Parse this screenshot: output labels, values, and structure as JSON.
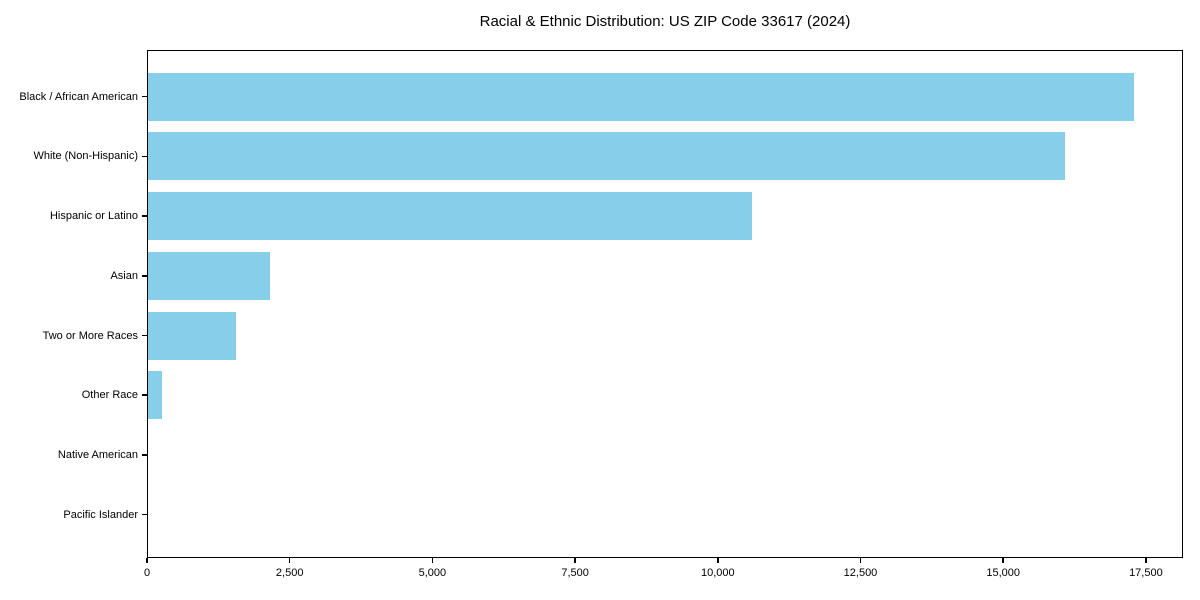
{
  "chart_data": {
    "type": "bar",
    "orientation": "horizontal",
    "title": "Racial & Ethnic Distribution: US ZIP Code 33617 (2024)",
    "categories": [
      "Black / African American",
      "White (Non-Hispanic)",
      "Hispanic or Latino",
      "Asian",
      "Two or More Races",
      "Other Race",
      "Native American",
      "Pacific Islander"
    ],
    "values": [
      17300,
      16100,
      10600,
      2150,
      1550,
      250,
      0,
      0
    ],
    "xlabel": "",
    "ylabel": "",
    "xlim": [
      0,
      18150
    ],
    "x_ticks": [
      0,
      2500,
      5000,
      7500,
      10000,
      12500,
      15000,
      17500
    ],
    "x_tick_labels": [
      "0",
      "2,500",
      "5,000",
      "7,500",
      "10,000",
      "12,500",
      "15,000",
      "17,500"
    ],
    "bar_color": "#87CEEB",
    "axis_color": "#000000",
    "background_color": "#ffffff",
    "grid": false,
    "legend_position": "none"
  }
}
